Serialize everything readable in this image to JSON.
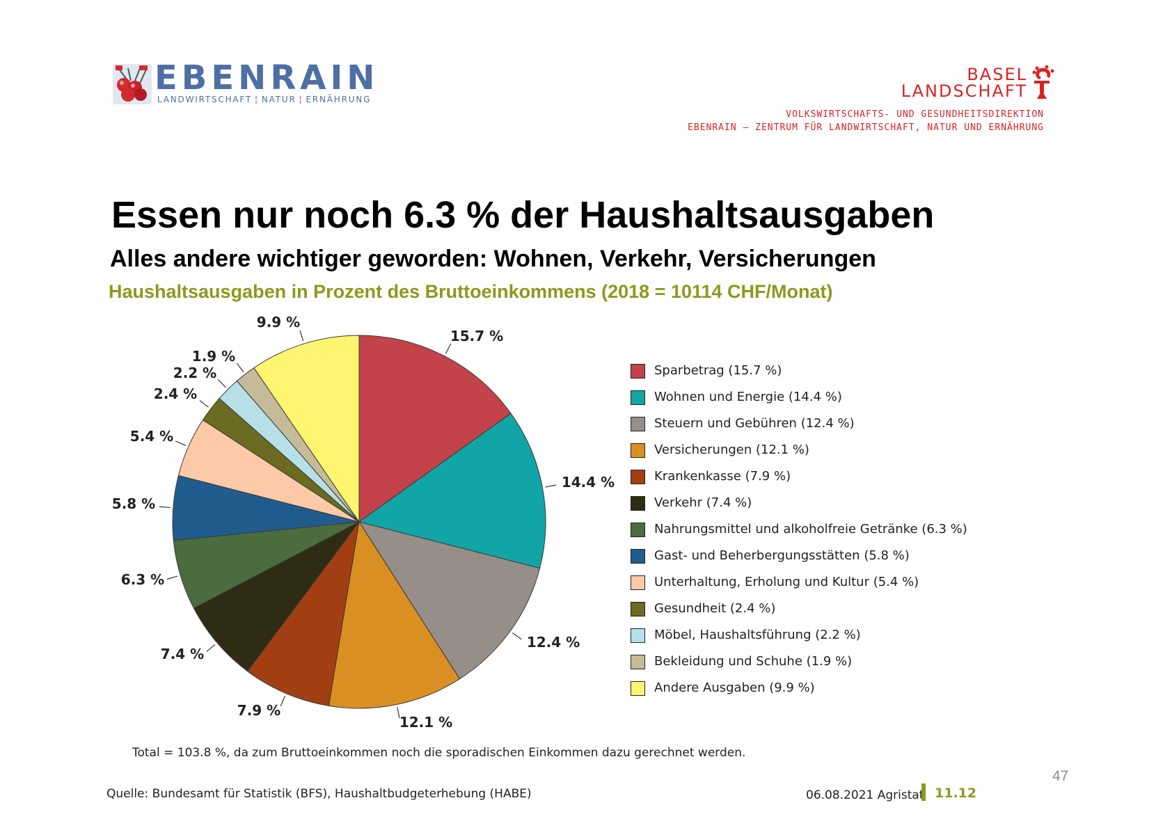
{
  "header": {
    "logo_left": {
      "name": "EBENRAIN",
      "tagline_parts": [
        "LANDWIRTSCHAFT",
        "NATUR",
        "ERNÄHRUNG"
      ],
      "tagline_separator": "¦",
      "icon": "cherries-icon"
    },
    "logo_right": {
      "line1": "BASEL",
      "line2": "LANDSCHAFT",
      "icon": "bishop-staff-icon"
    },
    "department_line1": "VOLKSWIRTSCHAFTS- UND GESUNDHEITSDIREKTION",
    "department_line2": "EBENRAIN – ZENTRUM FÜR LANDWIRTSCHAFT, NATUR UND ERNÄHRUNG"
  },
  "slide": {
    "title": "Essen nur noch 6.3 % der Haushaltsausgaben",
    "subtitle": "Alles andere wichtiger geworden: Wohnen, Verkehr, Versicherungen",
    "note": "Total = 103.8 %, da zum Bruttoeinkommen noch die sporadischen Einkommen dazu gerechnet werden.",
    "source": "Quelle: Bundesamt für Statistik (BFS), Haushaltbudgeterhebung (HABE)",
    "date": "06.08.2021 Agristat",
    "code": "11.12",
    "page_number": "47"
  },
  "colors": {
    "accent_green": "#8a9a1c",
    "logo_blue": "#4d6fa3",
    "logo_red": "#d92323"
  },
  "chart_data": {
    "type": "pie",
    "title": "Haushaltsausgaben in Prozent des Bruttoeinkommens (2018 = 10114 CHF/Monat)",
    "unit": "%",
    "start": "12 o'clock, clockwise",
    "slices": [
      {
        "name": "Sparbetrag",
        "legend": "Sparbetrag (15.7 %)",
        "value": 15.7,
        "label": "15.7 %",
        "color": "#c4424a"
      },
      {
        "name": "Wohnen und Energie",
        "legend": "Wohnen und Energie (14.4 %)",
        "value": 14.4,
        "label": "14.4 %",
        "color": "#12a5a5"
      },
      {
        "name": "Steuern und Gebühren",
        "legend": "Steuern und Gebühren (12.4 %)",
        "value": 12.4,
        "label": "12.4 %",
        "color": "#968e88"
      },
      {
        "name": "Versicherungen",
        "legend": "Versicherungen (12.1 %)",
        "value": 12.1,
        "label": "12.1 %",
        "color": "#da8f22"
      },
      {
        "name": "Krankenkasse",
        "legend": "Krankenkasse (7.9 %)",
        "value": 7.9,
        "label": "7.9 %",
        "color": "#a23f12"
      },
      {
        "name": "Verkehr",
        "legend": "Verkehr (7.4 %)",
        "value": 7.4,
        "label": "7.4 %",
        "color": "#2e2c14"
      },
      {
        "name": "Nahrungsmittel und alkoholfreie Getränke",
        "legend": "Nahrungsmittel und alkoholfreie Getränke (6.3 %)",
        "value": 6.3,
        "label": "6.3 %",
        "color": "#4b6d3e"
      },
      {
        "name": "Gast- und Beherbergungsstätten",
        "legend": "Gast- und Beherbergungsstätten (5.8 %)",
        "value": 5.8,
        "label": "5.8 %",
        "color": "#215c8e"
      },
      {
        "name": "Unterhaltung, Erholung und Kultur",
        "legend": "Unterhaltung, Erholung und Kultur (5.4 %)",
        "value": 5.4,
        "label": "5.4 %",
        "color": "#fdcaa8"
      },
      {
        "name": "Gesundheit",
        "legend": "Gesundheit (2.4 %)",
        "value": 2.4,
        "label": "2.4 %",
        "color": "#6a6b20"
      },
      {
        "name": "Möbel, Haushaltsführung",
        "legend": "Möbel, Haushaltsführung (2.2 %)",
        "value": 2.2,
        "label": "2.2 %",
        "color": "#b6dfe8"
      },
      {
        "name": "Bekleidung und Schuhe",
        "legend": "Bekleidung und Schuhe (1.9 %)",
        "value": 1.9,
        "label": "1.9 %",
        "color": "#c6bb98"
      },
      {
        "name": "Andere Ausgaben",
        "legend": "Andere Ausgaben (9.9 %)",
        "value": 9.9,
        "label": "9.9 %",
        "color": "#fff571"
      }
    ],
    "legend_position": "right"
  }
}
